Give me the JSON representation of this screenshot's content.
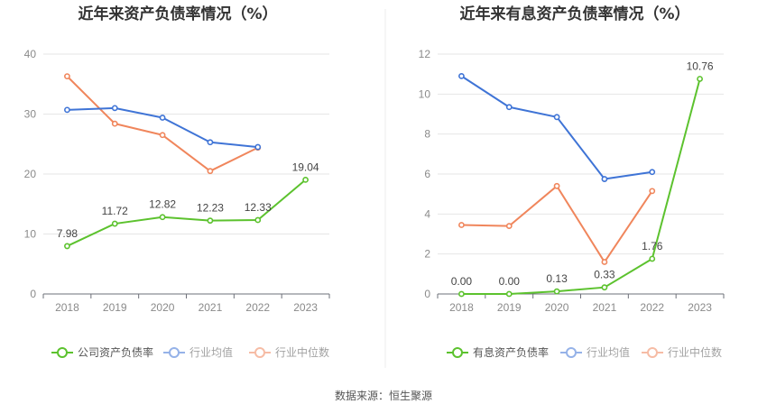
{
  "source": "数据来源：恒生聚源",
  "chart_data": [
    {
      "type": "line",
      "title": "近年来资产负债率情况（%）",
      "x": [
        "2018",
        "2019",
        "2020",
        "2021",
        "2022",
        "2023"
      ],
      "ylim": [
        0,
        40
      ],
      "yticks": [
        0,
        10,
        20,
        30,
        40
      ],
      "grid": true,
      "legend_position": "bottom",
      "series": [
        {
          "name": "公司资产负债率",
          "color": "#5cc22e",
          "values": [
            7.98,
            11.72,
            12.82,
            12.23,
            12.33,
            19.04
          ],
          "labels": [
            "7.98",
            "11.72",
            "12.82",
            "12.23",
            "12.33",
            "19.04"
          ]
        },
        {
          "name": "行业均值",
          "color": "#3f74d6",
          "values": [
            30.7,
            31.0,
            29.4,
            25.3,
            24.5,
            null
          ]
        },
        {
          "name": "行业中位数",
          "color": "#f0865c",
          "values": [
            36.3,
            28.4,
            26.5,
            20.5,
            24.4,
            null
          ]
        }
      ]
    },
    {
      "type": "line",
      "title": "近年来有息资产负债率情况（%）",
      "x": [
        "2018",
        "2019",
        "2020",
        "2021",
        "2022",
        "2023"
      ],
      "ylim": [
        0,
        12
      ],
      "yticks": [
        0,
        2,
        4,
        6,
        8,
        10,
        12
      ],
      "grid": true,
      "legend_position": "bottom",
      "series": [
        {
          "name": "有息资产负债率",
          "color": "#5cc22e",
          "values": [
            0.0,
            0.0,
            0.13,
            0.33,
            1.76,
            10.76
          ],
          "labels": [
            "0.00",
            "0.00",
            "0.13",
            "0.33",
            "1.76",
            "10.76"
          ]
        },
        {
          "name": "行业均值",
          "color": "#3f74d6",
          "values": [
            10.9,
            9.35,
            8.85,
            5.75,
            6.1,
            null
          ]
        },
        {
          "name": "行业中位数",
          "color": "#f0865c",
          "values": [
            3.45,
            3.4,
            5.4,
            1.6,
            5.15,
            null
          ]
        }
      ]
    }
  ]
}
